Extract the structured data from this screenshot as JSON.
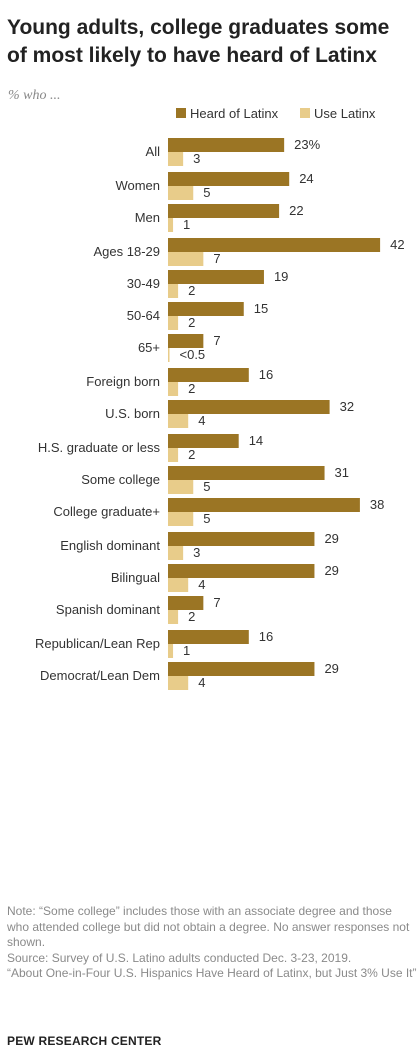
{
  "title": "Young adults, college graduates some of most likely to have heard of Latinx",
  "subtitle": "% who ...",
  "colors": {
    "heard": "#9B7524",
    "use": "#E8CC8A",
    "text": "#333333"
  },
  "chart_data": {
    "type": "bar",
    "orientation": "horizontal",
    "legend": {
      "position": "top",
      "entries": [
        "Heard of Latinx",
        "Use Latinx"
      ]
    },
    "categories": [
      "All",
      "Women",
      "Men",
      "Ages 18-29",
      "30-49",
      "50-64",
      "65+",
      "Foreign born",
      "U.S. born",
      "H.S. graduate or less",
      "Some college",
      "College graduate+",
      "English dominant",
      "Bilingual",
      "Spanish dominant",
      "Republican/Lean Rep",
      "Democrat/Lean Dem"
    ],
    "groups": [
      [
        0
      ],
      [
        1,
        2
      ],
      [
        3,
        4,
        5,
        6
      ],
      [
        7,
        8
      ],
      [
        9,
        10,
        11
      ],
      [
        12,
        13,
        14
      ],
      [
        15,
        16
      ]
    ],
    "series": [
      {
        "name": "Heard of Latinx",
        "values": [
          23,
          24,
          22,
          42,
          19,
          15,
          7,
          16,
          32,
          14,
          31,
          38,
          29,
          29,
          7,
          16,
          29
        ],
        "labels": [
          "23%",
          "24",
          "22",
          "42",
          "19",
          "15",
          "7",
          "16",
          "32",
          "14",
          "31",
          "38",
          "29",
          "29",
          "7",
          "16",
          "29"
        ]
      },
      {
        "name": "Use Latinx",
        "values": [
          3,
          5,
          1,
          7,
          2,
          2,
          0.3,
          2,
          4,
          2,
          5,
          5,
          3,
          4,
          2,
          1,
          4
        ],
        "labels": [
          "3",
          "5",
          "1",
          "7",
          "2",
          "2",
          "<0.5",
          "2",
          "4",
          "2",
          "5",
          "5",
          "3",
          "4",
          "2",
          "1",
          "4"
        ]
      }
    ],
    "grid": false
  },
  "notes": [
    "Note: “Some college” includes those with an associate degree and those who attended college but did not obtain a degree. No answer responses not shown.",
    "Source: Survey of U.S. Latino adults conducted Dec. 3-23, 2019.",
    "“About One-in-Four U.S. Hispanics Have Heard of Latinx, but Just 3% Use It”"
  ],
  "footer": "PEW RESEARCH CENTER"
}
